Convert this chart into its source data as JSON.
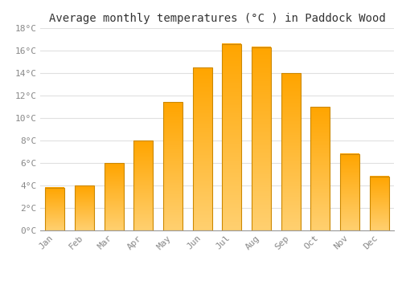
{
  "title": "Average monthly temperatures (°C ) in Paddock Wood",
  "months": [
    "Jan",
    "Feb",
    "Mar",
    "Apr",
    "May",
    "Jun",
    "Jul",
    "Aug",
    "Sep",
    "Oct",
    "Nov",
    "Dec"
  ],
  "values": [
    3.8,
    4.0,
    6.0,
    8.0,
    11.4,
    14.5,
    16.6,
    16.3,
    14.0,
    11.0,
    6.8,
    4.8
  ],
  "bar_color_top": "#FFA500",
  "bar_color_bottom": "#FFD070",
  "bar_edge_color": "#CC8800",
  "ylim": [
    0,
    18
  ],
  "yticks": [
    0,
    2,
    4,
    6,
    8,
    10,
    12,
    14,
    16,
    18
  ],
  "ytick_labels": [
    "0°C",
    "2°C",
    "4°C",
    "6°C",
    "8°C",
    "10°C",
    "12°C",
    "14°C",
    "16°C",
    "18°C"
  ],
  "grid_color": "#e0e0e0",
  "bg_color": "#ffffff",
  "title_fontsize": 10,
  "tick_fontsize": 8,
  "bar_width": 0.65
}
